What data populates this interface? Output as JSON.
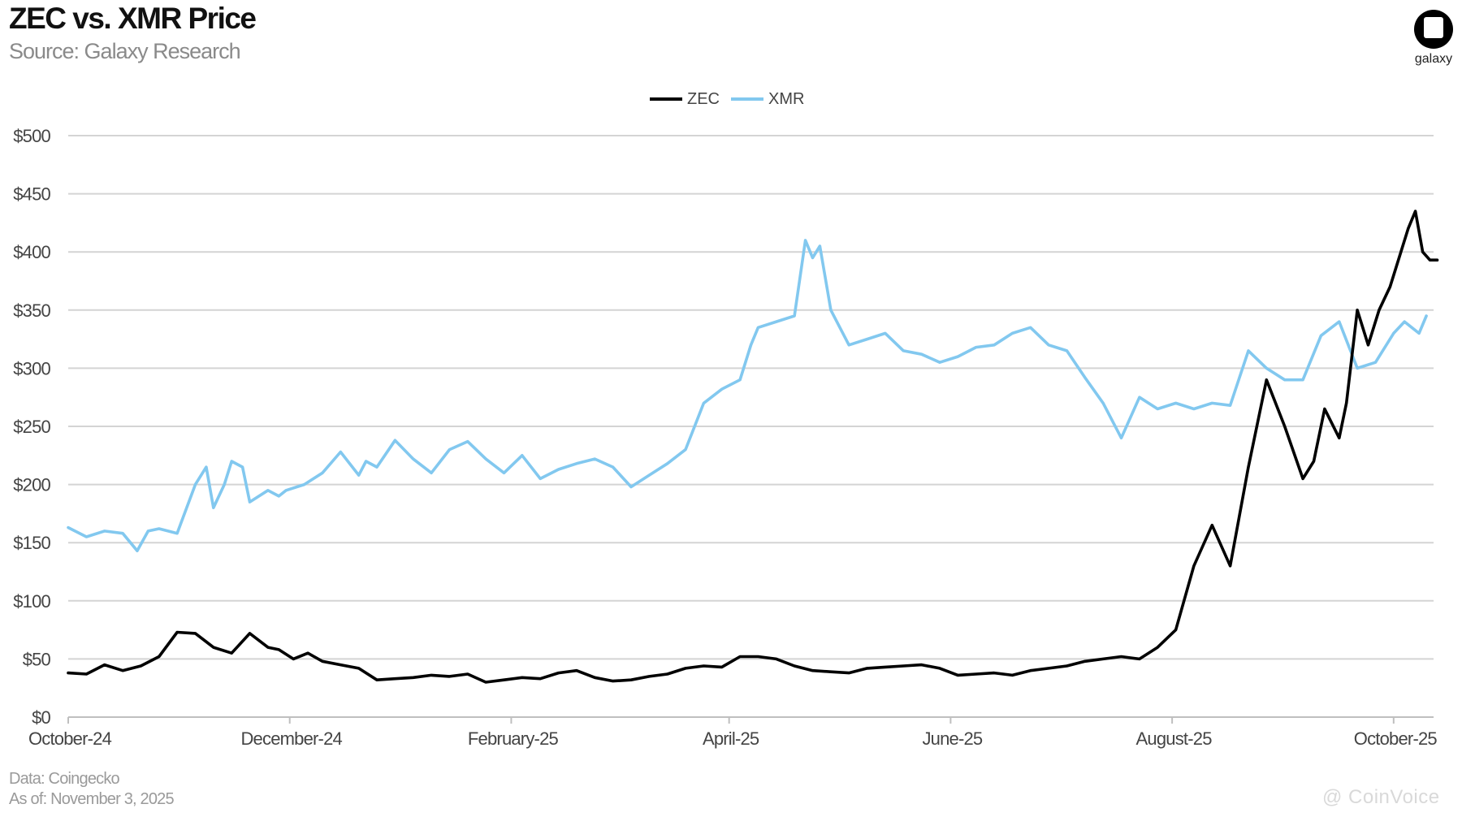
{
  "header": {
    "title": "ZEC vs. XMR Price",
    "subtitle": "Source: Galaxy Research"
  },
  "brand": {
    "logo_label": "galaxy"
  },
  "footer": {
    "data_source": "Data: Coingecko",
    "as_of": "As of: November 3, 2025"
  },
  "watermark": {
    "text": "@ CoinVoice"
  },
  "chart_data": {
    "type": "line",
    "title": "ZEC vs. XMR Price",
    "legend_position": "top-center",
    "grid": true,
    "xlim": [
      0,
      376
    ],
    "ylim": [
      0,
      500
    ],
    "y_ticks": [
      0,
      50,
      100,
      150,
      200,
      250,
      300,
      350,
      400,
      450,
      500
    ],
    "y_tick_labels": [
      "$0",
      "$50",
      "$100",
      "$150",
      "$200",
      "$250",
      "$300",
      "$350",
      "$400",
      "$450",
      "$500"
    ],
    "x_ticks": [
      0,
      61,
      122,
      182,
      243,
      304,
      365
    ],
    "x_tick_labels": [
      "October-24",
      "December-24",
      "February-25",
      "April-25",
      "June-25",
      "August-25",
      "October-25"
    ],
    "series": [
      {
        "name": "ZEC",
        "color": "#000000",
        "x": [
          0,
          5,
          10,
          15,
          20,
          25,
          30,
          35,
          40,
          45,
          50,
          55,
          58,
          62,
          66,
          70,
          75,
          80,
          85,
          90,
          95,
          100,
          105,
          110,
          115,
          120,
          125,
          130,
          135,
          140,
          145,
          150,
          155,
          160,
          165,
          170,
          175,
          180,
          185,
          190,
          195,
          200,
          205,
          210,
          215,
          220,
          225,
          230,
          235,
          240,
          245,
          250,
          255,
          260,
          265,
          270,
          275,
          280,
          285,
          290,
          295,
          300,
          305,
          310,
          315,
          320,
          325,
          330,
          335,
          340,
          343,
          346,
          350,
          352,
          355,
          358,
          361,
          364,
          367,
          369,
          371,
          373,
          375,
          377
        ],
        "values": [
          38,
          37,
          45,
          40,
          44,
          52,
          73,
          72,
          60,
          55,
          72,
          60,
          58,
          50,
          55,
          48,
          45,
          42,
          32,
          33,
          34,
          36,
          35,
          37,
          30,
          32,
          34,
          33,
          38,
          40,
          34,
          31,
          32,
          35,
          37,
          42,
          44,
          43,
          52,
          52,
          50,
          44,
          40,
          39,
          38,
          42,
          43,
          44,
          45,
          42,
          36,
          37,
          38,
          36,
          40,
          42,
          44,
          48,
          50,
          52,
          50,
          60,
          75,
          130,
          165,
          130,
          215,
          290,
          250,
          205,
          220,
          265,
          240,
          270,
          350,
          320,
          350,
          370,
          400,
          420,
          435,
          400,
          393,
          393
        ]
      },
      {
        "name": "XMR",
        "color": "#82c8ef",
        "x": [
          0,
          5,
          10,
          15,
          19,
          22,
          25,
          30,
          35,
          38,
          40,
          43,
          45,
          48,
          50,
          55,
          58,
          60,
          65,
          70,
          75,
          80,
          82,
          85,
          90,
          95,
          100,
          105,
          110,
          115,
          120,
          125,
          130,
          135,
          140,
          145,
          150,
          155,
          160,
          165,
          170,
          175,
          180,
          185,
          188,
          190,
          195,
          200,
          203,
          205,
          207,
          210,
          215,
          220,
          225,
          230,
          235,
          240,
          245,
          250,
          255,
          260,
          265,
          270,
          272,
          275,
          280,
          285,
          290,
          295,
          300,
          305,
          310,
          315,
          320,
          325,
          330,
          335,
          340,
          345,
          350,
          355,
          360,
          365,
          368,
          370,
          372,
          374
        ],
        "values": [
          163,
          155,
          160,
          158,
          143,
          160,
          162,
          158,
          200,
          215,
          180,
          200,
          220,
          215,
          185,
          195,
          190,
          195,
          200,
          210,
          228,
          208,
          220,
          215,
          238,
          222,
          210,
          230,
          237,
          222,
          210,
          225,
          205,
          213,
          218,
          222,
          215,
          198,
          208,
          218,
          230,
          270,
          282,
          290,
          320,
          335,
          340,
          345,
          410,
          395,
          405,
          350,
          320,
          325,
          330,
          315,
          312,
          305,
          310,
          318,
          320,
          330,
          335,
          320,
          318,
          315,
          292,
          270,
          240,
          275,
          265,
          270,
          265,
          270,
          268,
          315,
          300,
          290,
          290,
          328,
          340,
          300,
          305,
          330,
          340,
          335,
          330,
          345
        ]
      }
    ]
  }
}
